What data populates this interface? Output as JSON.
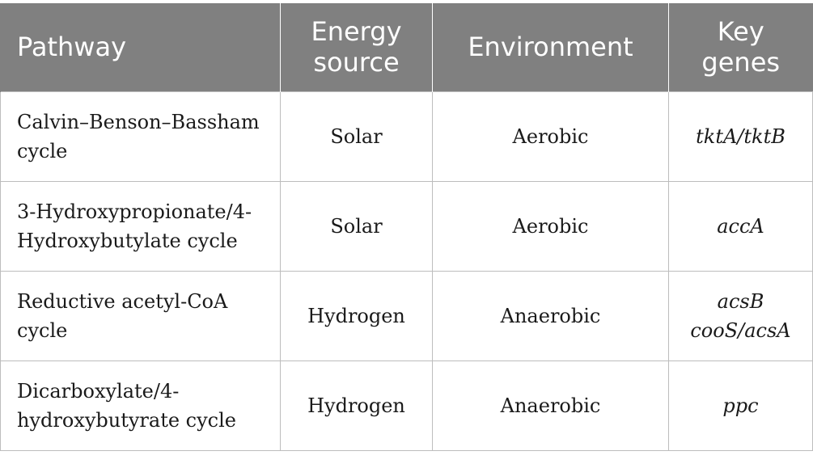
{
  "table": {
    "headers": [
      {
        "line1": "Pathway",
        "line2": ""
      },
      {
        "line1": "Energy",
        "line2": "source"
      },
      {
        "line1": "Environment",
        "line2": ""
      },
      {
        "line1": "Key",
        "line2": "genes"
      }
    ],
    "rows": [
      {
        "pathway": {
          "line1": "Calvin–Benson–Bassham",
          "line2": "cycle"
        },
        "energy_source": "Solar",
        "environment": "Aerobic",
        "key_genes": {
          "line1": "tktA/tktB",
          "line2": ""
        }
      },
      {
        "pathway": {
          "line1": "3-Hydroxypropionate/4-",
          "line2": "Hydroxybutylate cycle"
        },
        "energy_source": "Solar",
        "environment": "Aerobic",
        "key_genes": {
          "line1": "accA",
          "line2": ""
        }
      },
      {
        "pathway": {
          "line1": "Reductive acetyl-CoA",
          "line2": "cycle"
        },
        "energy_source": "Hydrogen",
        "environment": "Anaerobic",
        "key_genes": {
          "line1": "acsB",
          "line2": "cooS/acsA"
        }
      },
      {
        "pathway": {
          "line1": "Dicarboxylate/4-",
          "line2": "hydroxybutyrate cycle"
        },
        "energy_source": "Hydrogen",
        "environment": "Anaerobic",
        "key_genes": {
          "line1": "ppc",
          "line2": ""
        }
      }
    ]
  },
  "colors": {
    "header_background": "#808080",
    "header_text": "#ffffff",
    "body_text": "#1a1a1a",
    "grid_lines": "#bdbdbd"
  }
}
